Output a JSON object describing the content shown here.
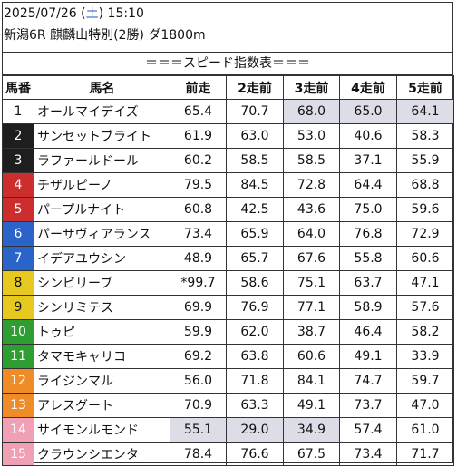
{
  "race": {
    "date": "2025/07/26",
    "weekday": "土",
    "time": "15:10",
    "name": "新潟6R 麒麟山特別(2勝) ダ1800m"
  },
  "table_title": "＝＝＝スピード指数表＝＝＝",
  "columns": [
    "馬番",
    "馬名",
    "前走",
    "2走前",
    "3走前",
    "4走前",
    "5走前"
  ],
  "colors": {
    "highlight": "#dcdde6",
    "saturday": "#1a56c8",
    "gate_bg": [
      "#ffffff",
      "#1e1e1e",
      "#cc2e2e",
      "#2a64c8",
      "#e6c81e",
      "#2e9e32",
      "#f08c28",
      "#f0a0b4"
    ],
    "gate_fg": [
      "#111111",
      "#ffffff",
      "#ffffff",
      "#ffffff",
      "#111111",
      "#ffffff",
      "#ffffff",
      "#ffffff"
    ]
  },
  "rows": [
    {
      "no": "1",
      "gate": 1,
      "name": "オールマイデイズ",
      "vals": [
        "65.4",
        "70.7",
        "68.0",
        "65.0",
        "64.1"
      ],
      "hl": [
        false,
        false,
        true,
        true,
        true
      ]
    },
    {
      "no": "2",
      "gate": 2,
      "name": "サンセットブライト",
      "vals": [
        "61.9",
        "63.0",
        "53.0",
        "40.6",
        "58.3"
      ],
      "hl": [
        false,
        false,
        false,
        false,
        false
      ]
    },
    {
      "no": "3",
      "gate": 2,
      "name": "ラファールドール",
      "vals": [
        "60.2",
        "58.5",
        "58.5",
        "37.1",
        "55.9"
      ],
      "hl": [
        false,
        false,
        false,
        false,
        false
      ]
    },
    {
      "no": "4",
      "gate": 3,
      "name": "チザルピーノ",
      "vals": [
        "79.5",
        "84.5",
        "72.8",
        "64.4",
        "68.8"
      ],
      "hl": [
        false,
        false,
        false,
        false,
        false
      ]
    },
    {
      "no": "5",
      "gate": 3,
      "name": "パープルナイト",
      "vals": [
        "60.8",
        "42.5",
        "43.6",
        "75.0",
        "59.6"
      ],
      "hl": [
        false,
        false,
        false,
        false,
        false
      ]
    },
    {
      "no": "6",
      "gate": 4,
      "name": "パーサヴィアランス",
      "vals": [
        "73.4",
        "65.9",
        "64.0",
        "76.8",
        "72.9"
      ],
      "hl": [
        false,
        false,
        false,
        false,
        false
      ]
    },
    {
      "no": "7",
      "gate": 4,
      "name": "イデアユウシン",
      "vals": [
        "48.9",
        "65.7",
        "67.6",
        "55.8",
        "60.6"
      ],
      "hl": [
        false,
        false,
        false,
        false,
        false
      ]
    },
    {
      "no": "8",
      "gate": 5,
      "name": "シンビリーブ",
      "vals": [
        "*99.7",
        "58.6",
        "75.1",
        "63.7",
        "47.1"
      ],
      "hl": [
        false,
        false,
        false,
        false,
        false
      ]
    },
    {
      "no": "9",
      "gate": 5,
      "name": "シンリミテス",
      "vals": [
        "69.9",
        "76.9",
        "77.1",
        "58.9",
        "57.6"
      ],
      "hl": [
        false,
        false,
        false,
        false,
        false
      ]
    },
    {
      "no": "10",
      "gate": 6,
      "name": "トゥピ",
      "vals": [
        "59.9",
        "62.0",
        "38.7",
        "46.4",
        "58.2"
      ],
      "hl": [
        false,
        false,
        false,
        false,
        false
      ]
    },
    {
      "no": "11",
      "gate": 6,
      "name": "タマモキャリコ",
      "vals": [
        "69.2",
        "63.8",
        "60.6",
        "49.1",
        "33.9"
      ],
      "hl": [
        false,
        false,
        false,
        false,
        false
      ]
    },
    {
      "no": "12",
      "gate": 7,
      "name": "ライジンマル",
      "vals": [
        "56.0",
        "71.8",
        "84.1",
        "74.7",
        "59.7"
      ],
      "hl": [
        false,
        false,
        false,
        false,
        false
      ]
    },
    {
      "no": "13",
      "gate": 7,
      "name": "アレスグート",
      "vals": [
        "70.9",
        "63.3",
        "49.1",
        "73.7",
        "47.0"
      ],
      "hl": [
        false,
        false,
        false,
        false,
        false
      ]
    },
    {
      "no": "14",
      "gate": 8,
      "name": "サイモンルモンド",
      "vals": [
        "55.1",
        "29.0",
        "34.9",
        "57.4",
        "61.0"
      ],
      "hl": [
        true,
        true,
        true,
        false,
        false
      ]
    },
    {
      "no": "15",
      "gate": 8,
      "name": "クラウンシエンタ",
      "vals": [
        "78.4",
        "76.6",
        "67.5",
        "73.4",
        "71.7"
      ],
      "hl": [
        false,
        false,
        false,
        false,
        false
      ]
    }
  ]
}
